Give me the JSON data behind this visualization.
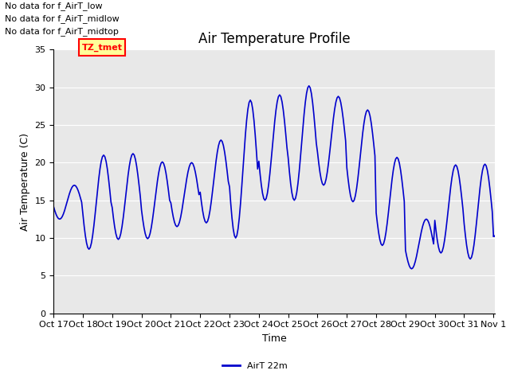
{
  "title": "Air Temperature Profile",
  "ylabel": "Air Temperature (C)",
  "xlabel": "Time",
  "legend_label": "AirT 22m",
  "line_color": "#0000cc",
  "background_color": "#e8e8e8",
  "ylim": [
    0,
    35
  ],
  "yticks": [
    0,
    5,
    10,
    15,
    20,
    25,
    30,
    35
  ],
  "xtick_labels": [
    "Oct 17",
    "Oct 18",
    "Oct 19",
    "Oct 20",
    "Oct 21",
    "Oct 22",
    "Oct 23",
    "Oct 24",
    "Oct 25",
    "Oct 26",
    "Oct 27",
    "Oct 28",
    "Oct 29",
    "Oct 30",
    "Oct 31",
    "Nov 1"
  ],
  "no_data_texts": [
    "No data for f_AirT_low",
    "No data for f_AirT_midlow",
    "No data for f_AirT_midtop"
  ],
  "tz_box_text": "TZ_tmet",
  "title_fontsize": 12,
  "label_fontsize": 9,
  "tick_fontsize": 8,
  "annot_fontsize": 8,
  "figsize": [
    6.4,
    4.8
  ],
  "dpi": 100,
  "daily_data": [
    [
      12.5,
      17.0
    ],
    [
      8.5,
      21.0
    ],
    [
      9.8,
      21.2
    ],
    [
      9.9,
      20.1
    ],
    [
      11.5,
      20.0
    ],
    [
      12.0,
      23.0
    ],
    [
      10.0,
      28.3
    ],
    [
      15.0,
      29.0
    ],
    [
      15.0,
      30.2
    ],
    [
      17.0,
      28.8
    ],
    [
      14.8,
      27.0
    ],
    [
      9.0,
      20.7
    ],
    [
      5.9,
      12.5
    ],
    [
      8.0,
      19.7
    ],
    [
      7.2,
      19.8
    ],
    [
      10.2,
      10.5
    ]
  ]
}
